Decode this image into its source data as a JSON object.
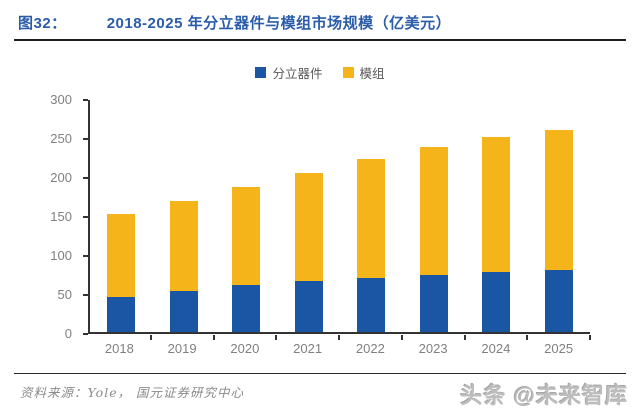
{
  "header": {
    "tag": "图32：",
    "title": "2018-2025 年分立器件与模组市场规模（亿美元）"
  },
  "legend": {
    "items": [
      {
        "label": "分立器件",
        "color": "#1b56a5"
      },
      {
        "label": "模组",
        "color": "#f5b41a"
      }
    ]
  },
  "chart_data": {
    "type": "bar",
    "stacked": true,
    "title": "2018-2025 年分立器件与模组市场规模（亿美元）",
    "categories": [
      "2018",
      "2019",
      "2020",
      "2021",
      "2022",
      "2023",
      "2024",
      "2025"
    ],
    "series": [
      {
        "name": "分立器件",
        "color": "#1b56a5",
        "values": [
          45,
          52,
          60,
          65,
          69,
          73,
          77,
          80
        ]
      },
      {
        "name": "模组",
        "color": "#f5b41a",
        "values": [
          106,
          116,
          126,
          139,
          153,
          164,
          173,
          179
        ]
      }
    ],
    "totals": [
      151,
      168,
      186,
      204,
      222,
      237,
      250,
      259
    ],
    "ylim": [
      0,
      300
    ],
    "yticks": [
      0,
      50,
      100,
      150,
      200,
      250,
      300
    ],
    "xlabel": "",
    "ylabel": "",
    "grid": false,
    "legend_position": "top-center",
    "unit": "亿美元"
  },
  "footer": {
    "source": "资料来源：Yole，  国元证券研究中心",
    "watermark": "头条 @未来智库"
  },
  "colors": {
    "title_blue": "#2a5caa",
    "bar_blue": "#1b56a5",
    "bar_orange": "#f5b41a",
    "axis": "#333333",
    "tick_label": "#808080"
  }
}
